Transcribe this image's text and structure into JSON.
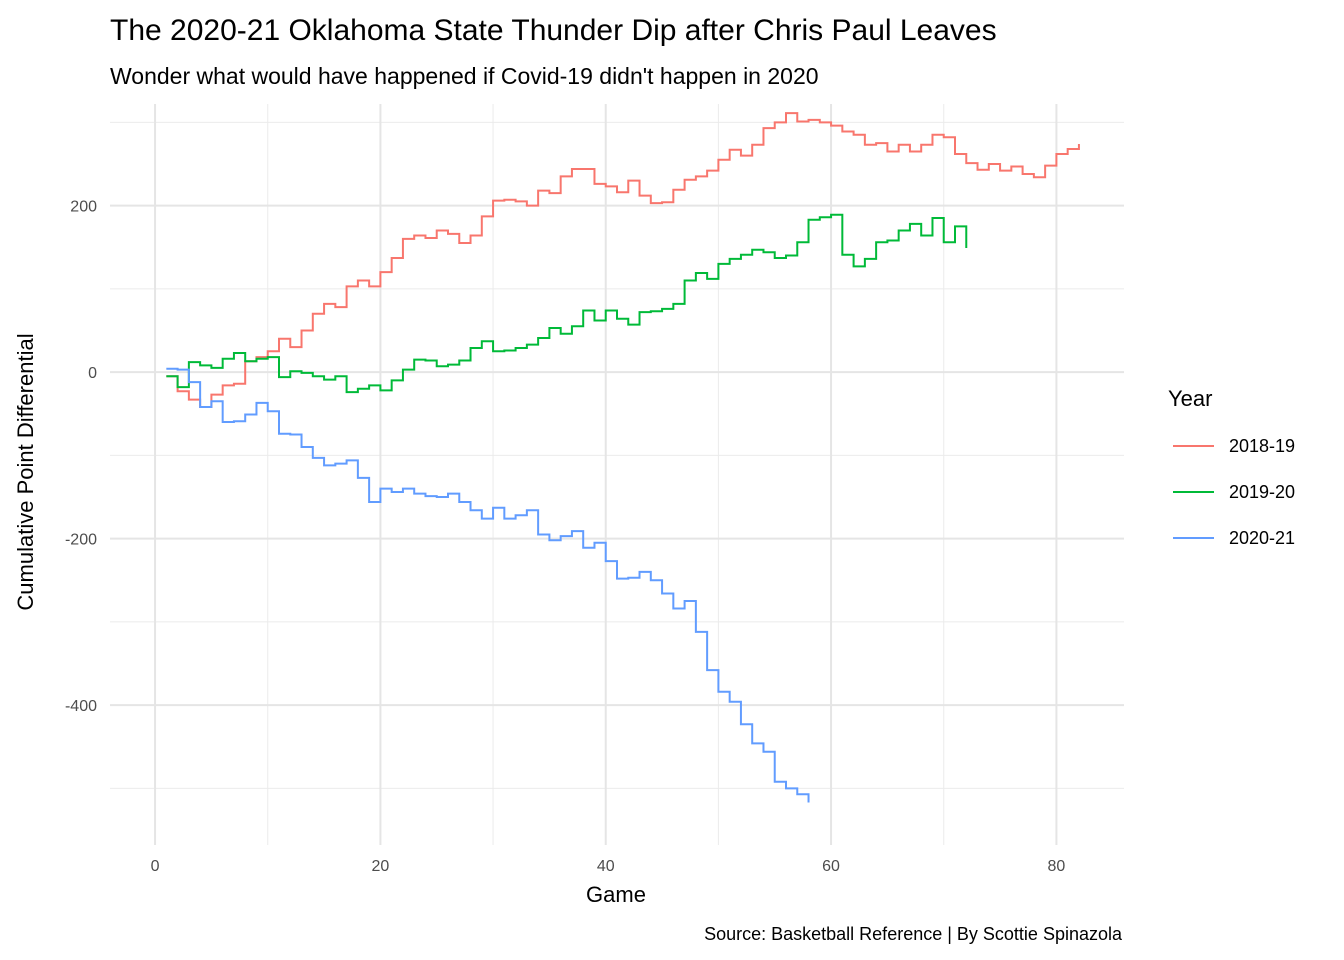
{
  "chart_data": {
    "type": "line",
    "title": "The 2020-21 Oklahoma State Thunder Dip after Chris Paul Leaves",
    "subtitle": "Wonder what would have happened if Covid-19 didn't happen in 2020",
    "caption": "Source: Basketball Reference | By Scottie Spinazola",
    "xlabel": "Game",
    "ylabel": "Cumulative Point Differential",
    "xlim": [
      -4,
      86
    ],
    "ylim": [
      -568,
      322
    ],
    "xticks": [
      0,
      20,
      40,
      60,
      80
    ],
    "xtick_labels": [
      "0",
      "20",
      "40",
      "60",
      "80"
    ],
    "yticks": [
      -400,
      -200,
      0,
      200
    ],
    "ytick_labels": [
      "-400",
      "-200",
      "0",
      "200"
    ],
    "grid": true,
    "step": true,
    "legend": {
      "title": "Year",
      "placement": "right"
    },
    "series": [
      {
        "name": "2018-19",
        "color": "#F8766D",
        "values": [
          -5,
          -23,
          -33,
          -42,
          -27,
          -16,
          -14,
          13,
          18,
          25,
          40,
          30,
          50,
          70,
          82,
          78,
          103,
          110,
          103,
          120,
          137,
          160,
          164,
          161,
          170,
          166,
          155,
          164,
          187,
          206,
          207,
          205,
          200,
          218,
          215,
          235,
          244,
          244,
          226,
          223,
          216,
          230,
          212,
          203,
          204,
          219,
          231,
          235,
          242,
          255,
          267,
          260,
          273,
          293,
          300,
          311,
          301,
          303,
          300,
          296,
          289,
          285,
          273,
          275,
          265,
          273,
          265,
          273,
          285,
          282,
          262,
          251,
          243,
          250,
          242,
          247,
          238,
          234,
          248,
          262,
          268,
          274
        ]
      },
      {
        "name": "2019-20",
        "color": "#00BA38",
        "values": [
          -5,
          -18,
          12,
          8,
          5,
          16,
          23,
          13,
          16,
          18,
          -6,
          1,
          -1,
          -5,
          -9,
          -5,
          -24,
          -20,
          -16,
          -22,
          -10,
          3,
          15,
          14,
          7,
          9,
          14,
          29,
          37,
          25,
          26,
          29,
          33,
          41,
          53,
          46,
          55,
          74,
          62,
          74,
          64,
          57,
          72,
          73,
          76,
          82,
          110,
          119,
          112,
          130,
          136,
          141,
          147,
          144,
          137,
          140,
          156,
          183,
          186,
          189,
          141,
          127,
          136,
          156,
          158,
          170,
          178,
          164,
          185,
          156,
          175,
          149
        ]
      },
      {
        "name": "2020-21",
        "color": "#619CFF",
        "values": [
          4,
          3,
          -12,
          -42,
          -35,
          -60,
          -59,
          -51,
          -37,
          -47,
          -74,
          -75,
          -90,
          -103,
          -112,
          -110,
          -106,
          -127,
          -156,
          -140,
          -144,
          -140,
          -146,
          -149,
          -150,
          -146,
          -156,
          -166,
          -176,
          -163,
          -176,
          -172,
          -166,
          -195,
          -202,
          -197,
          -191,
          -211,
          -205,
          -227,
          -248,
          -247,
          -240,
          -250,
          -266,
          -284,
          -275,
          -312,
          -358,
          -384,
          -396,
          -423,
          -446,
          -456,
          -492,
          -500,
          -507,
          -517
        ]
      }
    ]
  }
}
